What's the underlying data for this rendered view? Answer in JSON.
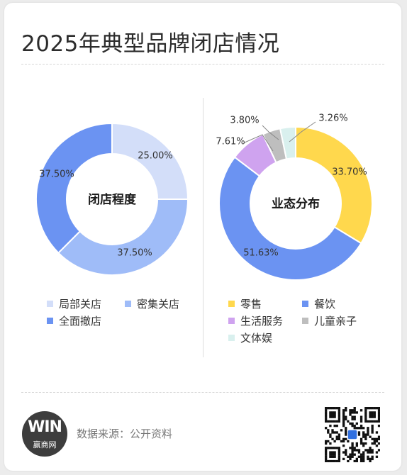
{
  "title": "2025年典型品牌闭店情况",
  "source": "数据来源：公开资料",
  "logo": {
    "mark": "WIN",
    "name": "赢商网"
  },
  "chart_data": [
    {
      "type": "pie",
      "center_label": "闭店程度",
      "categories": [
        "局部关店",
        "密集关店",
        "全面撤店"
      ],
      "values": [
        25.0,
        37.5,
        37.5
      ],
      "labels": [
        "25.00%",
        "37.50%",
        "37.50%"
      ],
      "colors": [
        "#d3def9",
        "#9fbcf8",
        "#6b93f2"
      ],
      "legend_position": "bottom"
    },
    {
      "type": "pie",
      "center_label": "业态分布",
      "categories": [
        "零售",
        "餐饮",
        "生活服务",
        "儿童亲子",
        "文体娱"
      ],
      "values": [
        33.7,
        51.63,
        7.61,
        3.8,
        3.26
      ],
      "labels": [
        "33.70%",
        "51.63%",
        "7.61%",
        "3.80%",
        "3.26%"
      ],
      "colors": [
        "#ffd84d",
        "#6b93f2",
        "#cfa3ef",
        "#bebebe",
        "#d9f0ee"
      ],
      "legend_position": "bottom"
    }
  ]
}
